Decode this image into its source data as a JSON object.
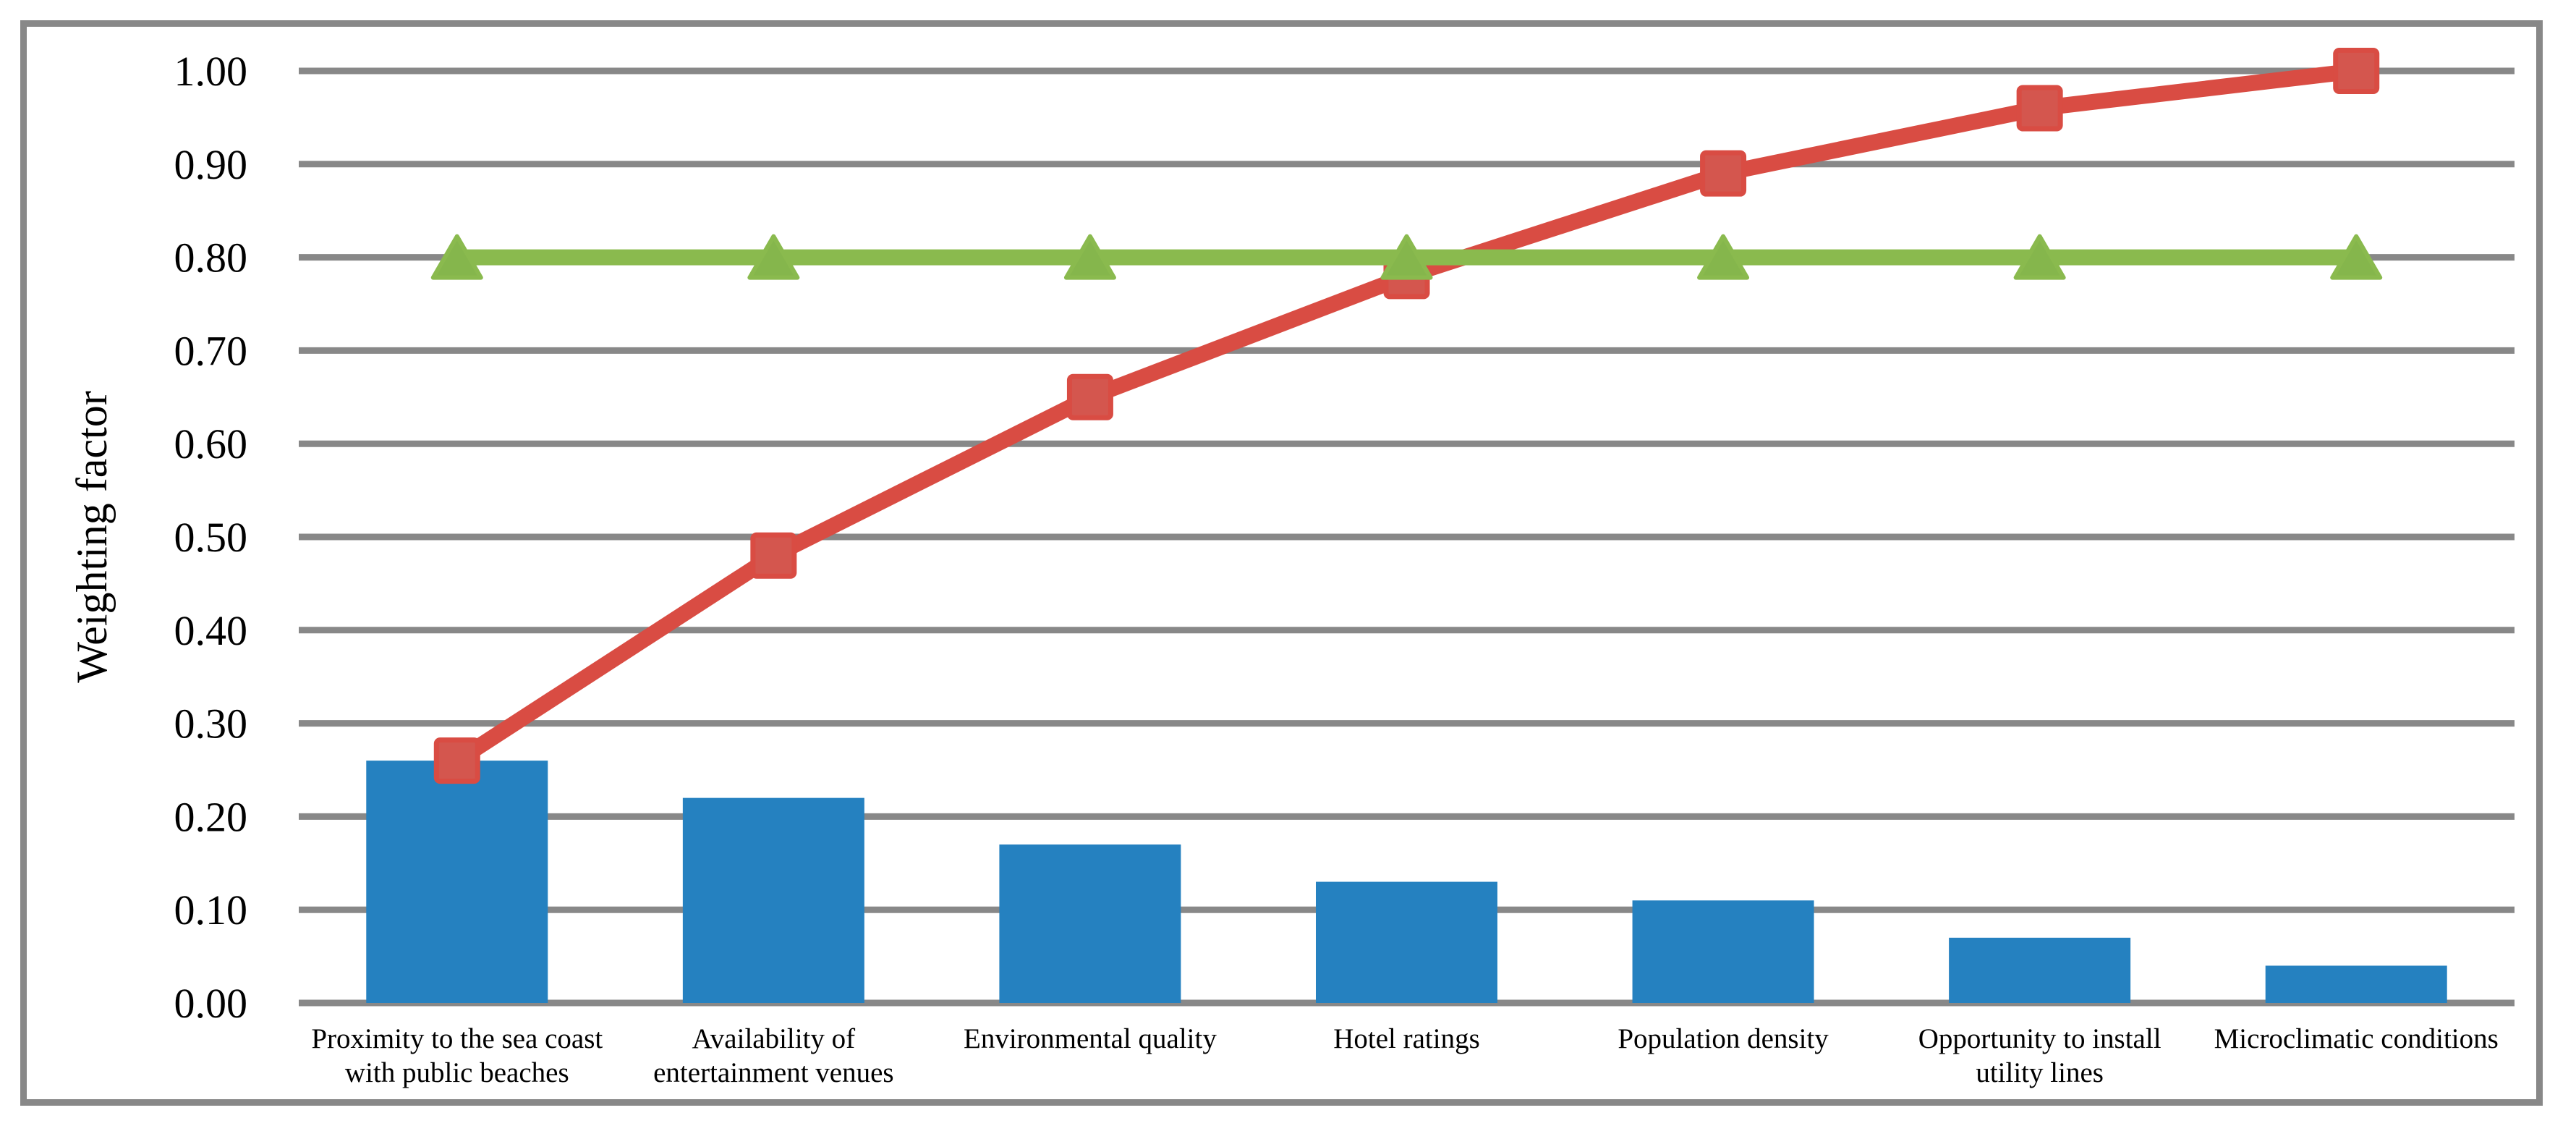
{
  "chart_data": {
    "type": "bar",
    "subtype": "pareto",
    "title": "",
    "xlabel": "",
    "ylabel": "Weighting factor",
    "ylim": [
      0,
      1
    ],
    "ytick_step": 0.1,
    "yticks": [
      "0.00",
      "0.10",
      "0.20",
      "0.30",
      "0.40",
      "0.50",
      "0.60",
      "0.70",
      "0.80",
      "0.90",
      "1.00"
    ],
    "grid": "horizontal",
    "legend_position": "none",
    "categories": [
      [
        "Proximity to the sea coast",
        "with public beaches"
      ],
      [
        "Availability of",
        "entertainment venues"
      ],
      [
        "Environmental quality"
      ],
      [
        "Hotel ratings"
      ],
      [
        "Population density"
      ],
      [
        "Opportunity to install",
        "utility lines"
      ],
      [
        "Microclimatic conditions"
      ]
    ],
    "series": [
      {
        "name": "weighting-factor-bars",
        "type": "bar",
        "marker": "none",
        "color": "#2581c0",
        "values": [
          0.26,
          0.22,
          0.17,
          0.13,
          0.11,
          0.07,
          0.04
        ]
      },
      {
        "name": "cumulative-share-line",
        "type": "line",
        "marker": "square",
        "color": "#d94c43",
        "marker_fill": "#d4564e",
        "values": [
          0.26,
          0.48,
          0.65,
          0.78,
          0.89,
          0.96,
          1.0
        ]
      },
      {
        "name": "threshold-line",
        "type": "line",
        "marker": "triangle-up",
        "color": "#8aba4e",
        "marker_fill": "#85b64c",
        "values": [
          0.8,
          0.8,
          0.8,
          0.8,
          0.8,
          0.8,
          0.8
        ]
      }
    ],
    "colors": {
      "grid": "#888888",
      "frame": "#888888",
      "text": "#000000",
      "background": "#ffffff"
    }
  }
}
